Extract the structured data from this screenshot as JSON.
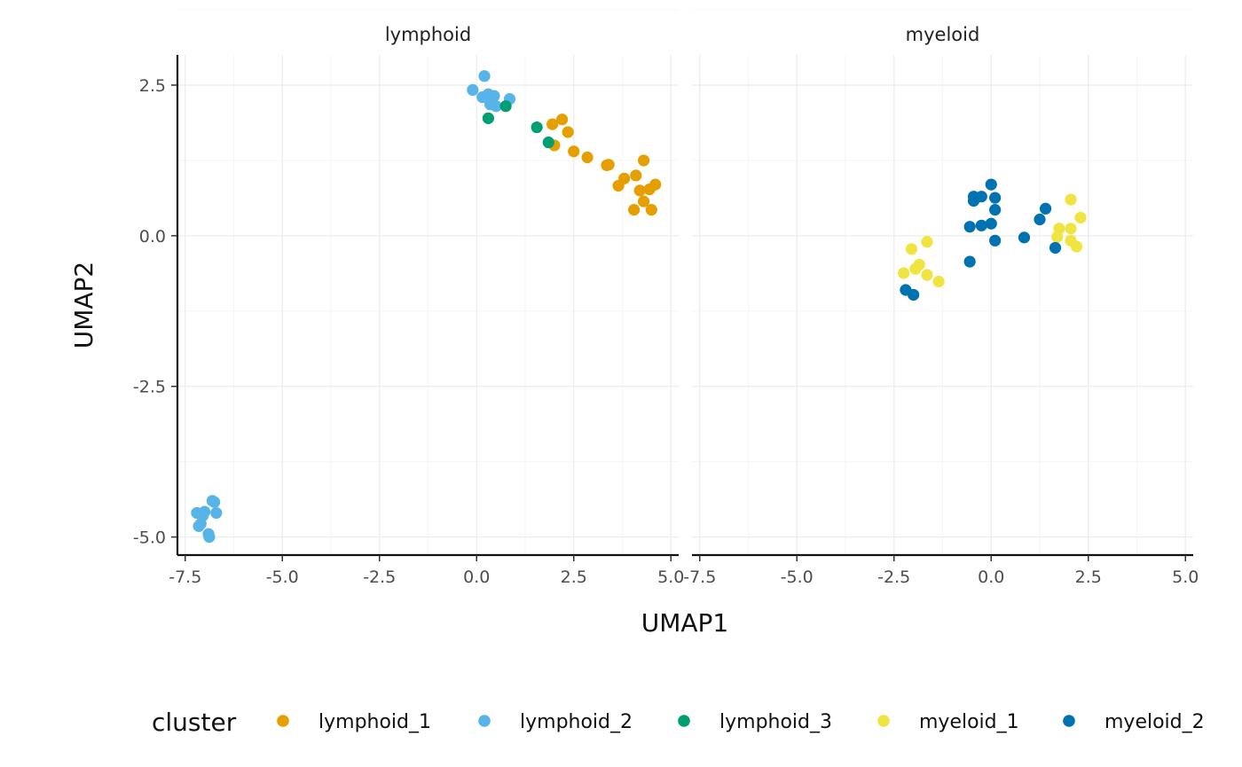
{
  "chart_data": {
    "type": "scatter",
    "xlabel": "UMAP1",
    "ylabel": "UMAP2",
    "xlim": [
      -7.7,
      5.2
    ],
    "ylim": [
      -5.3,
      3.0
    ],
    "xticks": [
      -7.5,
      -5.0,
      -2.5,
      0.0,
      2.5,
      5.0
    ],
    "yticks": [
      2.5,
      0.0,
      -2.5,
      -5.0
    ],
    "xtick_labels": [
      "-7.5",
      "-5.0",
      "-2.5",
      "0.0",
      "2.5",
      "5.0"
    ],
    "ytick_labels": [
      "2.5",
      "0.0",
      "-2.5",
      "-5.0"
    ],
    "grid": true,
    "legend": {
      "title": "cluster",
      "position": "bottom",
      "entries": [
        {
          "name": "lymphoid_1",
          "color": "#E69F00"
        },
        {
          "name": "lymphoid_2",
          "color": "#56B4E9"
        },
        {
          "name": "lymphoid_3",
          "color": "#009E73"
        },
        {
          "name": "myeloid_1",
          "color": "#F0E442"
        },
        {
          "name": "myeloid_2",
          "color": "#0072B2"
        }
      ]
    },
    "panels": [
      {
        "name": "lymphoid",
        "series": [
          {
            "name": "lymphoid_1",
            "color": "#E69F00",
            "points": [
              [
                1.95,
                1.85
              ],
              [
                2.2,
                1.93
              ],
              [
                2.35,
                1.72
              ],
              [
                2.0,
                1.5
              ],
              [
                2.5,
                1.4
              ],
              [
                2.85,
                1.3
              ],
              [
                3.35,
                1.17
              ],
              [
                3.4,
                1.18
              ],
              [
                4.3,
                1.25
              ],
              [
                3.8,
                0.95
              ],
              [
                4.1,
                1.0
              ],
              [
                3.65,
                0.83
              ],
              [
                4.2,
                0.75
              ],
              [
                4.45,
                0.77
              ],
              [
                4.6,
                0.85
              ],
              [
                4.3,
                0.57
              ],
              [
                4.05,
                0.43
              ],
              [
                4.5,
                0.43
              ]
            ]
          },
          {
            "name": "lymphoid_2",
            "color": "#56B4E9",
            "points": [
              [
                0.2,
                2.65
              ],
              [
                -0.1,
                2.42
              ],
              [
                0.15,
                2.3
              ],
              [
                0.3,
                2.35
              ],
              [
                0.45,
                2.32
              ],
              [
                0.85,
                2.27
              ],
              [
                0.35,
                2.18
              ],
              [
                0.5,
                2.15
              ],
              [
                -6.8,
                -4.4
              ],
              [
                -6.75,
                -4.42
              ],
              [
                -7.2,
                -4.6
              ],
              [
                -7.0,
                -4.58
              ],
              [
                -6.7,
                -4.6
              ],
              [
                -7.05,
                -4.65
              ],
              [
                -7.1,
                -4.78
              ],
              [
                -7.15,
                -4.82
              ],
              [
                -6.9,
                -4.95
              ],
              [
                -6.88,
                -5.0
              ]
            ]
          },
          {
            "name": "lymphoid_3",
            "color": "#009E73",
            "points": [
              [
                0.75,
                2.15
              ],
              [
                0.3,
                1.95
              ],
              [
                1.55,
                1.8
              ],
              [
                1.85,
                1.55
              ]
            ]
          }
        ]
      },
      {
        "name": "myeloid",
        "series": [
          {
            "name": "myeloid_1",
            "color": "#F0E442",
            "points": [
              [
                2.05,
                0.6
              ],
              [
                2.3,
                0.3
              ],
              [
                1.75,
                0.12
              ],
              [
                2.05,
                0.12
              ],
              [
                1.7,
                -0.02
              ],
              [
                2.05,
                -0.08
              ],
              [
                2.2,
                -0.18
              ],
              [
                -1.65,
                -0.1
              ],
              [
                -2.05,
                -0.22
              ],
              [
                -1.85,
                -0.48
              ],
              [
                -1.95,
                -0.55
              ],
              [
                -2.25,
                -0.62
              ],
              [
                -1.65,
                -0.65
              ],
              [
                -1.35,
                -0.76
              ]
            ]
          },
          {
            "name": "myeloid_2",
            "color": "#0072B2",
            "points": [
              [
                0.0,
                0.85
              ],
              [
                -0.45,
                0.65
              ],
              [
                -0.25,
                0.65
              ],
              [
                0.1,
                0.63
              ],
              [
                -0.45,
                0.58
              ],
              [
                0.1,
                0.43
              ],
              [
                1.4,
                0.45
              ],
              [
                1.25,
                0.27
              ],
              [
                0.0,
                0.2
              ],
              [
                -0.25,
                0.17
              ],
              [
                -0.55,
                0.15
              ],
              [
                0.85,
                -0.03
              ],
              [
                0.1,
                -0.08
              ],
              [
                1.65,
                -0.2
              ],
              [
                -0.55,
                -0.43
              ],
              [
                -2.2,
                -0.9
              ],
              [
                -2.0,
                -0.98
              ]
            ]
          }
        ]
      }
    ]
  }
}
